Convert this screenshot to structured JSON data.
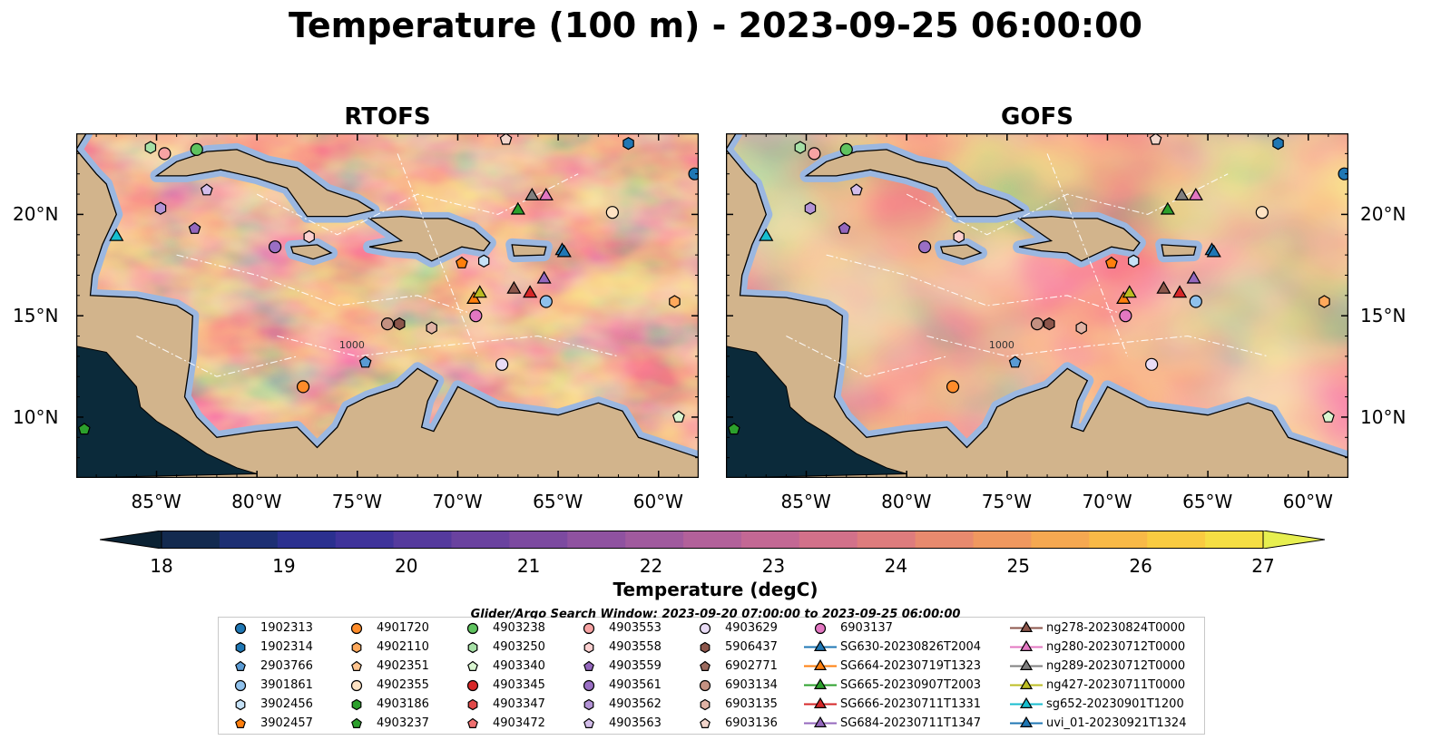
{
  "title": "Temperature (100 m) - 2023-09-25 06:00:00",
  "panels": [
    {
      "id": "rtofs",
      "title": "RTOFS"
    },
    {
      "id": "gofs",
      "title": "GOFS"
    }
  ],
  "map": {
    "lon_range": [
      -89,
      -58
    ],
    "lat_range": [
      7,
      24
    ],
    "lon_ticks": [
      "85°W",
      "80°W",
      "75°W",
      "70°W",
      "65°W",
      "60°W"
    ],
    "lat_ticks": [
      "20°N",
      "15°N",
      "10°N"
    ],
    "contour_labels": [
      "1000"
    ],
    "colors": {
      "ocean_shallow": "#9bb7e0",
      "land": "#d2b48c",
      "pacific": "#0b2a3a"
    }
  },
  "colorbar": {
    "label": "Temperature (degC)",
    "min": 18,
    "max": 27,
    "extend": "both",
    "ticks": [
      "18",
      "19",
      "20",
      "21",
      "22",
      "23",
      "24",
      "25",
      "26",
      "27"
    ],
    "colors": [
      "#0b2233",
      "#132a4f",
      "#1d2f73",
      "#2b308f",
      "#3f339a",
      "#553a9d",
      "#6a429f",
      "#7c4aa0",
      "#8f52a0",
      "#a05a9e",
      "#b2619a",
      "#c36894",
      "#d2718a",
      "#de7c7d",
      "#e88a6e",
      "#f0985f",
      "#f5a851",
      "#f8b947",
      "#f9cb41",
      "#f5de44",
      "#e7ef50"
    ]
  },
  "legend": {
    "title": "Glider/Argo Search Window: 2023-09-20 07:00:00 to 2023-09-25 06:00:00",
    "columns": [
      [
        {
          "label": "1902313",
          "marker": "circle",
          "color": "#1f77b4"
        },
        {
          "label": "1902314",
          "marker": "hexagon",
          "color": "#1f77b4"
        },
        {
          "label": "2903766",
          "marker": "pentagon",
          "color": "#5a9bd4"
        },
        {
          "label": "3901861",
          "marker": "circle",
          "color": "#8fc1ec"
        },
        {
          "label": "3902456",
          "marker": "hexagon",
          "color": "#c6e2f7"
        },
        {
          "label": "3902457",
          "marker": "pentagon",
          "color": "#ff7f0e"
        }
      ],
      [
        {
          "label": "4901720",
          "marker": "circle",
          "color": "#ff8c2a"
        },
        {
          "label": "4902110",
          "marker": "hexagon",
          "color": "#ffa95c"
        },
        {
          "label": "4902351",
          "marker": "pentagon",
          "color": "#ffc48f"
        },
        {
          "label": "4902355",
          "marker": "circle",
          "color": "#ffe3c4"
        },
        {
          "label": "4903186",
          "marker": "hexagon",
          "color": "#2ca02c"
        },
        {
          "label": "4903237",
          "marker": "pentagon",
          "color": "#2ca02c"
        }
      ],
      [
        {
          "label": "4903238",
          "marker": "circle",
          "color": "#5fc35f"
        },
        {
          "label": "4903250",
          "marker": "hexagon",
          "color": "#a6e0a6"
        },
        {
          "label": "4903340",
          "marker": "pentagon",
          "color": "#d9f5d0"
        },
        {
          "label": "4903345",
          "marker": "circle",
          "color": "#d62728"
        },
        {
          "label": "4903347",
          "marker": "hexagon",
          "color": "#e04848"
        },
        {
          "label": "4903472",
          "marker": "pentagon",
          "color": "#f07070"
        }
      ],
      [
        {
          "label": "4903553",
          "marker": "circle",
          "color": "#f7a3a3"
        },
        {
          "label": "4903558",
          "marker": "hexagon",
          "color": "#fbd0d0"
        },
        {
          "label": "4903559",
          "marker": "pentagon",
          "color": "#9467bd"
        },
        {
          "label": "4903561",
          "marker": "circle",
          "color": "#9a6fc4"
        },
        {
          "label": "4903562",
          "marker": "hexagon",
          "color": "#b393d6"
        },
        {
          "label": "4903563",
          "marker": "pentagon",
          "color": "#d3bdea"
        }
      ],
      [
        {
          "label": "4903629",
          "marker": "circle",
          "color": "#e9dcf6"
        },
        {
          "label": "5906437",
          "marker": "hexagon",
          "color": "#8c564b"
        },
        {
          "label": "6902771",
          "marker": "pentagon",
          "color": "#9b6a5e"
        },
        {
          "label": "6903134",
          "marker": "circle",
          "color": "#c49182"
        },
        {
          "label": "6903135",
          "marker": "hexagon",
          "color": "#e0b3a5"
        },
        {
          "label": "6903136",
          "marker": "pentagon",
          "color": "#f3d6cc"
        }
      ],
      [
        {
          "label": "6903137",
          "marker": "circle",
          "color": "#e377c2"
        },
        {
          "label": "SG630-20230826T2004",
          "marker": "triangle",
          "color": "#1f77b4"
        },
        {
          "label": "SG664-20230719T1323",
          "marker": "triangle",
          "color": "#ff7f0e"
        },
        {
          "label": "SG665-20230907T2003",
          "marker": "triangle",
          "color": "#2ca02c"
        },
        {
          "label": "SG666-20230711T1331",
          "marker": "triangle",
          "color": "#d62728"
        },
        {
          "label": "SG684-20230711T1347",
          "marker": "triangle",
          "color": "#9467bd"
        }
      ],
      [
        {
          "label": "ng278-20230824T0000",
          "marker": "triangle",
          "color": "#8c564b"
        },
        {
          "label": "ng280-20230712T0000",
          "marker": "triangle",
          "color": "#e377c2"
        },
        {
          "label": "ng289-20230712T0000",
          "marker": "triangle",
          "color": "#7f7f7f"
        },
        {
          "label": "ng427-20230711T0000",
          "marker": "triangle",
          "color": "#bcbd22"
        },
        {
          "label": "sg652-20230901T1200",
          "marker": "triangle",
          "color": "#17becf"
        },
        {
          "label": "uvi_01-20230921T1324",
          "marker": "triangle",
          "color": "#1f77b4"
        }
      ]
    ]
  },
  "markers": [
    {
      "label": "1902313",
      "lon": -58.2,
      "lat": 22.0
    },
    {
      "label": "1902314",
      "lon": -61.5,
      "lat": 23.5
    },
    {
      "label": "2903766",
      "lon": -74.6,
      "lat": 12.7
    },
    {
      "label": "3901861",
      "lon": -65.6,
      "lat": 15.7
    },
    {
      "label": "3902456",
      "lon": -68.7,
      "lat": 17.7
    },
    {
      "label": "3902457",
      "lon": -69.8,
      "lat": 17.6
    },
    {
      "label": "4901720",
      "lon": -77.7,
      "lat": 11.5
    },
    {
      "label": "4902110",
      "lon": -59.2,
      "lat": 15.7
    },
    {
      "label": "4902355",
      "lon": -62.3,
      "lat": 20.1
    },
    {
      "label": "4903237",
      "lon": -88.6,
      "lat": 9.4
    },
    {
      "label": "4903238",
      "lon": -83.0,
      "lat": 23.2
    },
    {
      "label": "4903250",
      "lon": -85.3,
      "lat": 23.3
    },
    {
      "label": "4903340",
      "lon": -59.0,
      "lat": 10.0
    },
    {
      "label": "4903553",
      "lon": -84.6,
      "lat": 23.0
    },
    {
      "label": "4903558",
      "lon": -77.4,
      "lat": 18.9
    },
    {
      "label": "4903559",
      "lon": -83.1,
      "lat": 19.3
    },
    {
      "label": "4903561",
      "lon": -79.1,
      "lat": 18.4
    },
    {
      "label": "4903562",
      "lon": -84.8,
      "lat": 20.3
    },
    {
      "label": "4903563",
      "lon": -82.5,
      "lat": 21.2
    },
    {
      "label": "4903629",
      "lon": -67.8,
      "lat": 12.6
    },
    {
      "label": "5906437",
      "lon": -72.9,
      "lat": 14.6
    },
    {
      "label": "6903134",
      "lon": -73.5,
      "lat": 14.6
    },
    {
      "label": "6903135",
      "lon": -71.3,
      "lat": 14.4
    },
    {
      "label": "6903136",
      "lon": -67.6,
      "lat": 23.7
    },
    {
      "label": "6903137",
      "lon": -69.1,
      "lat": 15.0
    },
    {
      "label": "SG630-20230826T2004",
      "lon": -64.8,
      "lat": 18.2
    },
    {
      "label": "SG664-20230719T1323",
      "lon": -69.2,
      "lat": 15.8
    },
    {
      "label": "SG665-20230907T2003",
      "lon": -67.0,
      "lat": 20.2
    },
    {
      "label": "SG666-20230711T1331",
      "lon": -66.4,
      "lat": 16.1
    },
    {
      "label": "SG684-20230711T1347",
      "lon": -65.7,
      "lat": 16.8
    },
    {
      "label": "ng278-20230824T0000",
      "lon": -67.2,
      "lat": 16.3
    },
    {
      "label": "ng280-20230712T0000",
      "lon": -65.6,
      "lat": 20.9
    },
    {
      "label": "ng289-20230712T0000",
      "lon": -66.3,
      "lat": 20.9
    },
    {
      "label": "ng427-20230711T0000",
      "lon": -68.9,
      "lat": 16.1
    },
    {
      "label": "sg652-20230901T1200",
      "lon": -87.0,
      "lat": 18.9
    },
    {
      "label": "uvi_01-20230921T1324",
      "lon": -64.7,
      "lat": 18.1
    }
  ]
}
